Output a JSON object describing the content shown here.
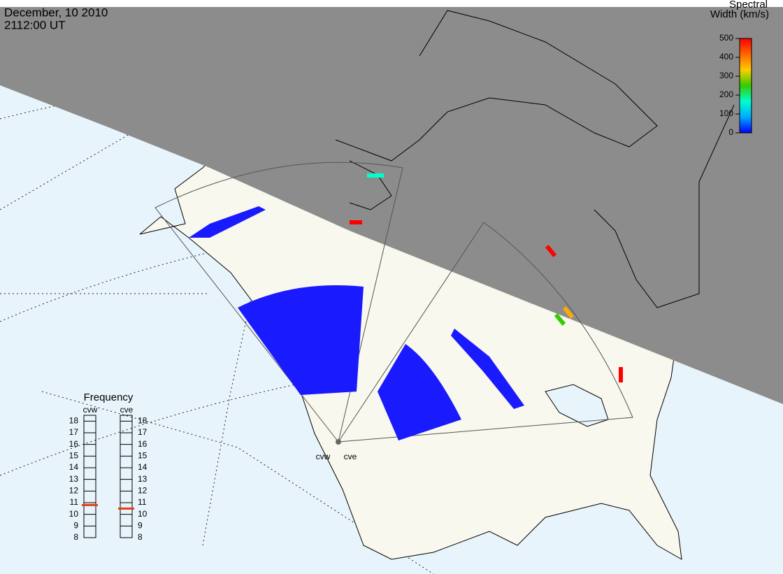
{
  "header": {
    "date": "December, 10 2010",
    "time": "2112:00 UT"
  },
  "colorbar": {
    "title": [
      "Spectral",
      "Width (km/s)"
    ],
    "lim": [
      0,
      500
    ],
    "ticks": [
      0,
      100,
      200,
      300,
      400,
      500
    ],
    "colors": [
      "#0000ff",
      "#00aaff",
      "#00ffcc",
      "#33cc00",
      "#ffcc00",
      "#ff6600",
      "#ff0000"
    ]
  },
  "frequency": {
    "title": "Frequency",
    "lim": [
      8,
      18.5
    ],
    "ticks": [
      8,
      9,
      10,
      11,
      12,
      13,
      14,
      15,
      16,
      17,
      18
    ],
    "marker_color": "#e04010",
    "radars": [
      {
        "name": "cvw",
        "value": 10.8
      },
      {
        "name": "cve",
        "value": 10.5
      }
    ]
  }
}
